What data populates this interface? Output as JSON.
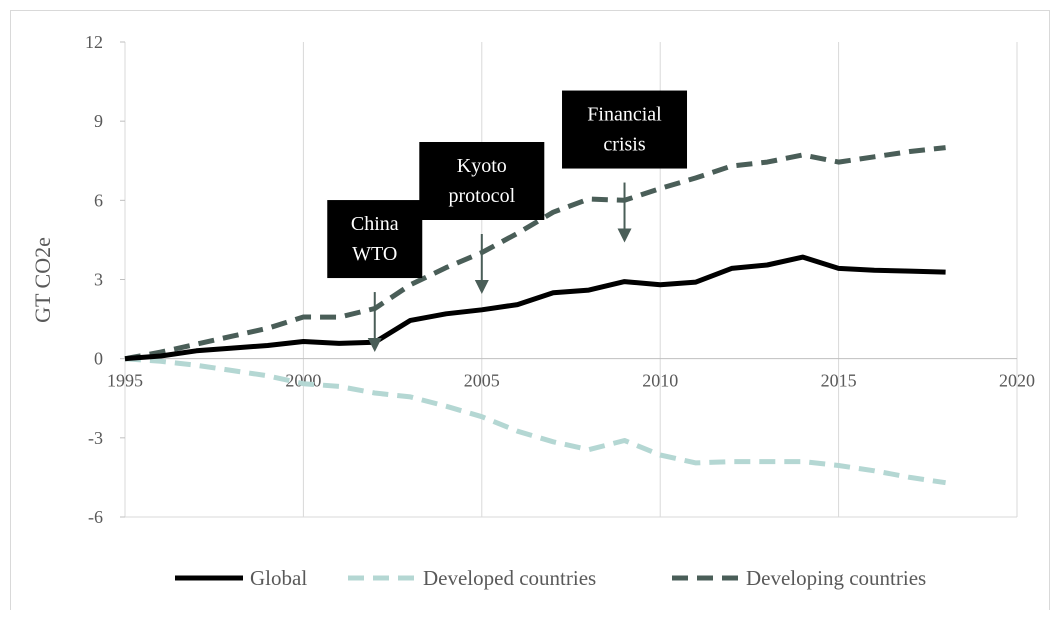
{
  "chart_data": {
    "type": "line",
    "title": "",
    "xlabel": "",
    "ylabel": "GT CO2e",
    "xlim": [
      1995,
      2020
    ],
    "ylim": [
      -6,
      12
    ],
    "xticks": [
      1995,
      2000,
      2005,
      2010,
      2015,
      2020
    ],
    "yticks": [
      -6,
      -3,
      0,
      3,
      6,
      9,
      12
    ],
    "grid": "vertical",
    "legend_position": "bottom",
    "x": [
      1995,
      1996,
      1997,
      1998,
      1999,
      2000,
      2001,
      2002,
      2003,
      2004,
      2005,
      2006,
      2007,
      2008,
      2009,
      2010,
      2011,
      2012,
      2013,
      2014,
      2015,
      2016,
      2017,
      2018
    ],
    "series": [
      {
        "name": "Global",
        "color": "#000000",
        "style": "solid",
        "values": [
          0,
          0.1,
          0.3,
          0.4,
          0.5,
          0.65,
          0.58,
          0.62,
          1.45,
          1.7,
          1.85,
          2.05,
          2.5,
          2.6,
          2.92,
          2.8,
          2.9,
          3.42,
          3.55,
          3.85,
          3.42,
          3.35,
          3.32,
          3.28
        ]
      },
      {
        "name": "Developed countries",
        "color": "#b4d7d3",
        "style": "dashed",
        "values": [
          0,
          -0.1,
          -0.25,
          -0.45,
          -0.65,
          -0.95,
          -1.05,
          -1.3,
          -1.45,
          -1.8,
          -2.2,
          -2.75,
          -3.15,
          -3.45,
          -3.1,
          -3.65,
          -3.95,
          -3.9,
          -3.9,
          -3.9,
          -4.05,
          -4.25,
          -4.5,
          -4.7
        ]
      },
      {
        "name": "Developing countries",
        "color": "#4a5e58",
        "style": "dashed",
        "values": [
          0,
          0.25,
          0.55,
          0.85,
          1.15,
          1.58,
          1.57,
          1.9,
          2.8,
          3.45,
          4.02,
          4.75,
          5.55,
          6.05,
          6.0,
          6.45,
          6.85,
          7.3,
          7.45,
          7.72,
          7.45,
          7.65,
          7.85,
          8.0
        ]
      }
    ],
    "annotations": [
      {
        "lines": [
          "China",
          "WTO"
        ],
        "x": 2002,
        "y": 2.6
      },
      {
        "lines": [
          "Kyoto",
          "protocol"
        ],
        "x": 2005,
        "y": 4.8
      },
      {
        "lines": [
          "Financial",
          "crisis"
        ],
        "x": 2009,
        "y": 6.75
      }
    ]
  }
}
